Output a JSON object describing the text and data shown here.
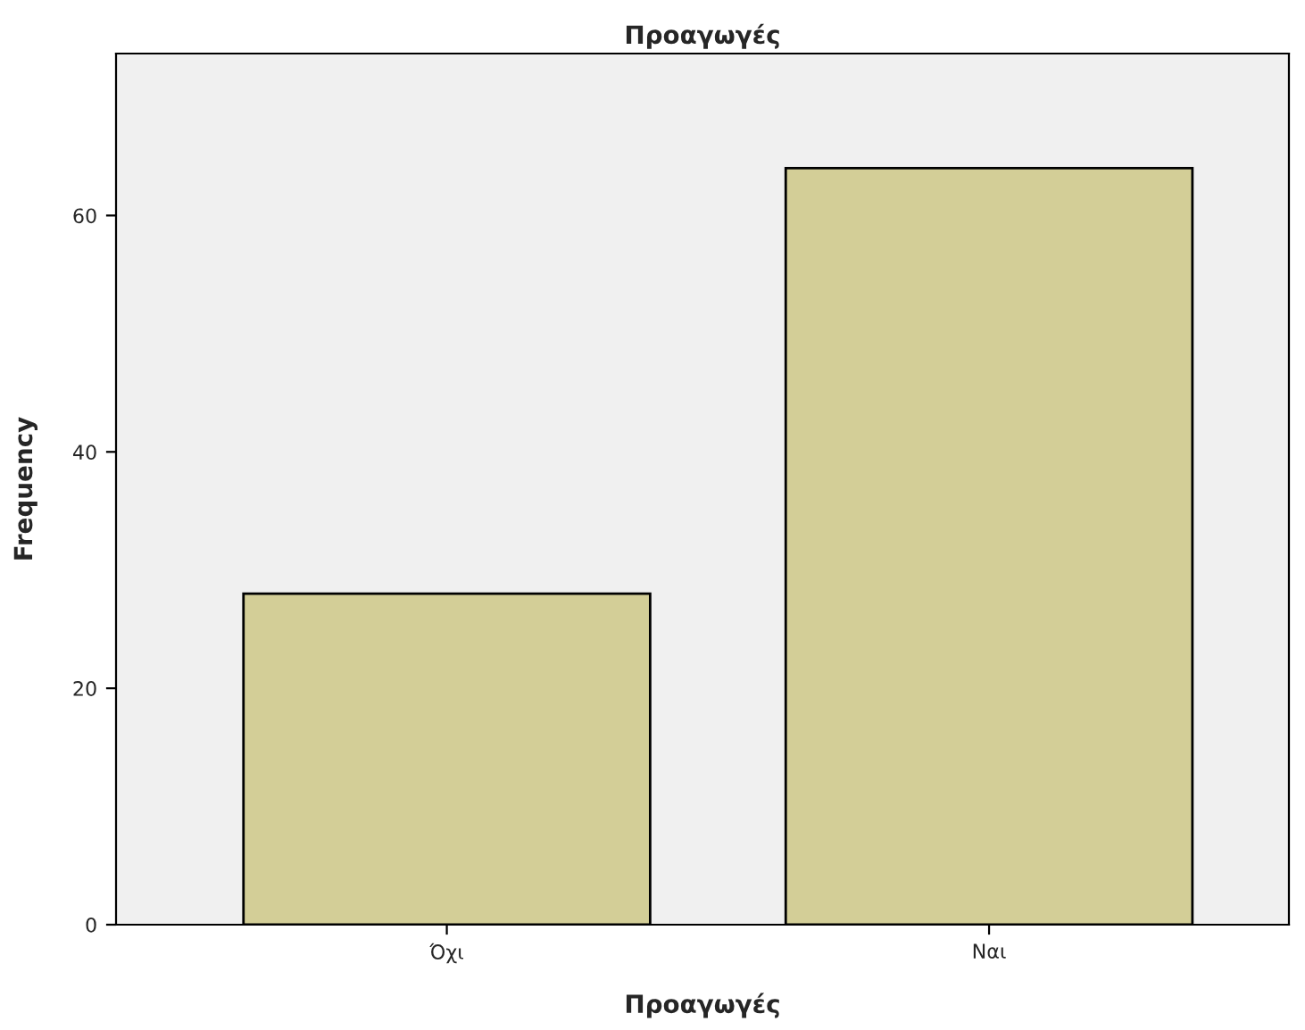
{
  "chart_data": {
    "type": "bar",
    "title": "Προαγωγές",
    "xlabel": "Προαγωγές",
    "ylabel": "Frequency",
    "categories": [
      "Όχι",
      "Ναι"
    ],
    "values": [
      28,
      64
    ],
    "color": "#d3ce97",
    "ylim": [
      0,
      73.7
    ],
    "yticks": [
      0,
      20,
      40,
      60
    ],
    "grid": false,
    "legend": false
  }
}
